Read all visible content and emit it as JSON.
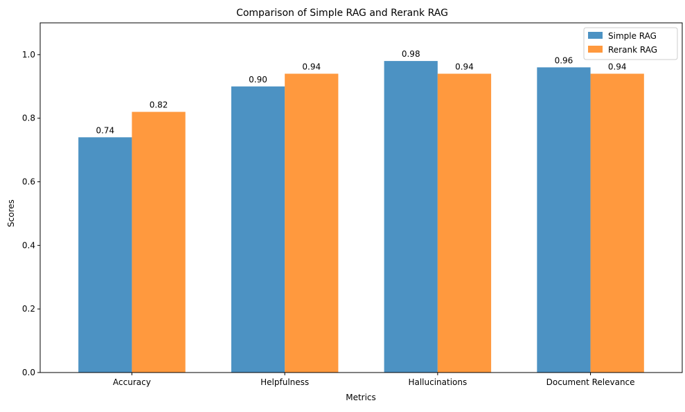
{
  "chart_data": {
    "type": "bar",
    "title": "Comparison of Simple RAG and Rerank RAG",
    "xlabel": "Metrics",
    "ylabel": "Scores",
    "categories": [
      "Accuracy",
      "Helpfulness",
      "Hallucinations",
      "Document Relevance"
    ],
    "series": [
      {
        "name": "Simple RAG",
        "values": [
          0.74,
          0.9,
          0.98,
          0.96
        ],
        "labels": [
          "0.74",
          "0.90",
          "0.98",
          "0.96"
        ],
        "color": "#4c92c3"
      },
      {
        "name": "Rerank RAG",
        "values": [
          0.82,
          0.94,
          0.94,
          0.94
        ],
        "labels": [
          "0.82",
          "0.94",
          "0.94",
          "0.94"
        ],
        "color": "#ff993e"
      }
    ],
    "ylim": [
      0,
      1.1
    ],
    "yticks": [
      "0.0",
      "0.2",
      "0.4",
      "0.6",
      "0.8",
      "1.0"
    ],
    "grid": false,
    "legend_position": "top-right"
  }
}
